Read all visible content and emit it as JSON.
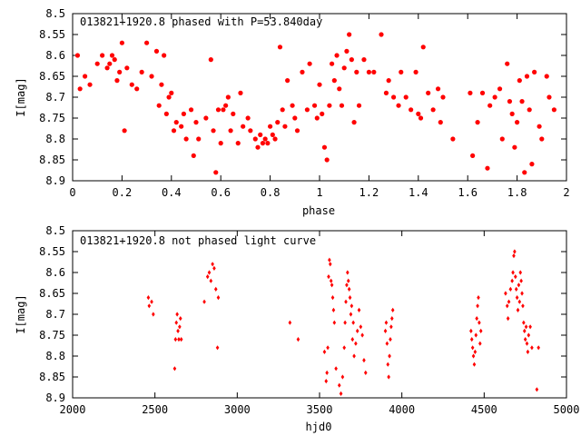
{
  "colors": {
    "points": "#ff0000",
    "frame": "#000000",
    "background": "#ffffff"
  },
  "chart_data": [
    {
      "type": "scatter",
      "title": "013821+1920.8 phased with P=53.840day",
      "xlabel": "phase",
      "ylabel": "I[mag]",
      "xlim": [
        0,
        2
      ],
      "ylim": [
        8.5,
        8.9
      ],
      "y_inverted": true,
      "x_ticks": [
        "0",
        "0.2",
        "0.4",
        "0.6",
        "0.8",
        "1",
        "1.2",
        "1.4",
        "1.6",
        "1.8",
        "2"
      ],
      "y_ticks": [
        "8.5",
        "8.55",
        "8.6",
        "8.65",
        "8.7",
        "8.75",
        "8.8",
        "8.85",
        "8.9"
      ],
      "grid": false,
      "marker": "filled-circle",
      "series": [
        {
          "points": [
            [
              0.02,
              8.6
            ],
            [
              0.03,
              8.68
            ],
            [
              0.05,
              8.65
            ],
            [
              0.07,
              8.67
            ],
            [
              0.1,
              8.62
            ],
            [
              0.12,
              8.6
            ],
            [
              0.14,
              8.63
            ],
            [
              0.15,
              8.62
            ],
            [
              0.16,
              8.6
            ],
            [
              0.17,
              8.61
            ],
            [
              0.18,
              8.66
            ],
            [
              0.19,
              8.64
            ],
            [
              0.2,
              8.57
            ],
            [
              0.21,
              8.78
            ],
            [
              0.22,
              8.63
            ],
            [
              0.24,
              8.67
            ],
            [
              0.26,
              8.68
            ],
            [
              0.28,
              8.64
            ],
            [
              0.3,
              8.57
            ],
            [
              0.32,
              8.65
            ],
            [
              0.34,
              8.59
            ],
            [
              0.35,
              8.72
            ],
            [
              0.36,
              8.67
            ],
            [
              0.37,
              8.6
            ],
            [
              0.38,
              8.74
            ],
            [
              0.39,
              8.7
            ],
            [
              0.4,
              8.69
            ],
            [
              0.41,
              8.78
            ],
            [
              0.42,
              8.76
            ],
            [
              0.44,
              8.77
            ],
            [
              0.45,
              8.74
            ],
            [
              0.46,
              8.8
            ],
            [
              0.48,
              8.73
            ],
            [
              0.49,
              8.84
            ],
            [
              0.5,
              8.76
            ],
            [
              0.51,
              8.8
            ],
            [
              0.54,
              8.75
            ],
            [
              0.56,
              8.61
            ],
            [
              0.57,
              8.78
            ],
            [
              0.58,
              8.88
            ],
            [
              0.59,
              8.73
            ],
            [
              0.6,
              8.81
            ],
            [
              0.61,
              8.73
            ],
            [
              0.62,
              8.72
            ],
            [
              0.63,
              8.7
            ],
            [
              0.64,
              8.78
            ],
            [
              0.65,
              8.74
            ],
            [
              0.67,
              8.81
            ],
            [
              0.68,
              8.69
            ],
            [
              0.69,
              8.77
            ],
            [
              0.71,
              8.75
            ],
            [
              0.72,
              8.78
            ],
            [
              0.74,
              8.8
            ],
            [
              0.75,
              8.82
            ],
            [
              0.76,
              8.79
            ],
            [
              0.77,
              8.81
            ],
            [
              0.78,
              8.8
            ],
            [
              0.79,
              8.81
            ],
            [
              0.8,
              8.77
            ],
            [
              0.81,
              8.79
            ],
            [
              0.82,
              8.8
            ],
            [
              0.83,
              8.76
            ],
            [
              0.84,
              8.58
            ],
            [
              0.85,
              8.73
            ],
            [
              0.86,
              8.77
            ],
            [
              0.87,
              8.66
            ],
            [
              0.89,
              8.72
            ],
            [
              0.9,
              8.75
            ],
            [
              0.91,
              8.78
            ],
            [
              0.93,
              8.64
            ],
            [
              0.95,
              8.73
            ],
            [
              0.96,
              8.62
            ],
            [
              0.98,
              8.72
            ],
            [
              0.99,
              8.75
            ],
            [
              1.0,
              8.67
            ],
            [
              1.01,
              8.74
            ],
            [
              1.02,
              8.82
            ],
            [
              1.03,
              8.85
            ],
            [
              1.04,
              8.72
            ],
            [
              1.05,
              8.62
            ],
            [
              1.06,
              8.66
            ],
            [
              1.07,
              8.6
            ],
            [
              1.08,
              8.68
            ],
            [
              1.09,
              8.72
            ],
            [
              1.1,
              8.63
            ],
            [
              1.11,
              8.59
            ],
            [
              1.12,
              8.55
            ],
            [
              1.13,
              8.61
            ],
            [
              1.14,
              8.76
            ],
            [
              1.15,
              8.64
            ],
            [
              1.16,
              8.72
            ],
            [
              1.18,
              8.61
            ],
            [
              1.2,
              8.64
            ],
            [
              1.22,
              8.64
            ],
            [
              1.25,
              8.55
            ],
            [
              1.27,
              8.69
            ],
            [
              1.28,
              8.66
            ],
            [
              1.3,
              8.7
            ],
            [
              1.32,
              8.72
            ],
            [
              1.33,
              8.64
            ],
            [
              1.35,
              8.7
            ],
            [
              1.37,
              8.73
            ],
            [
              1.39,
              8.64
            ],
            [
              1.4,
              8.74
            ],
            [
              1.41,
              8.75
            ],
            [
              1.42,
              8.58
            ],
            [
              1.44,
              8.69
            ],
            [
              1.46,
              8.73
            ],
            [
              1.48,
              8.68
            ],
            [
              1.49,
              8.76
            ],
            [
              1.5,
              8.7
            ],
            [
              1.54,
              8.8
            ],
            [
              1.61,
              8.69
            ],
            [
              1.62,
              8.84
            ],
            [
              1.64,
              8.76
            ],
            [
              1.66,
              8.69
            ],
            [
              1.68,
              8.87
            ],
            [
              1.69,
              8.72
            ],
            [
              1.71,
              8.7
            ],
            [
              1.73,
              8.68
            ],
            [
              1.74,
              8.8
            ],
            [
              1.76,
              8.62
            ],
            [
              1.77,
              8.71
            ],
            [
              1.78,
              8.74
            ],
            [
              1.79,
              8.82
            ],
            [
              1.8,
              8.76
            ],
            [
              1.81,
              8.66
            ],
            [
              1.82,
              8.71
            ],
            [
              1.83,
              8.88
            ],
            [
              1.84,
              8.65
            ],
            [
              1.85,
              8.73
            ],
            [
              1.86,
              8.86
            ],
            [
              1.87,
              8.64
            ],
            [
              1.89,
              8.77
            ],
            [
              1.9,
              8.8
            ],
            [
              1.92,
              8.65
            ],
            [
              1.93,
              8.7
            ],
            [
              1.95,
              8.73
            ]
          ]
        }
      ]
    },
    {
      "type": "scatter",
      "title": "013821+1920.8 not phased light curve",
      "xlabel": "hjd0",
      "ylabel": "I[mag]",
      "xlim": [
        2000,
        5000
      ],
      "ylim": [
        8.5,
        8.9
      ],
      "y_inverted": true,
      "x_ticks": [
        "2000",
        "2500",
        "3000",
        "3500",
        "4000",
        "4500",
        "5000"
      ],
      "y_ticks": [
        "8.5",
        "8.55",
        "8.6",
        "8.65",
        "8.7",
        "8.75",
        "8.8",
        "8.85",
        "8.9"
      ],
      "grid": false,
      "marker": "small-diamond",
      "series": [
        {
          "points": [
            [
              2460,
              8.66
            ],
            [
              2465,
              8.68
            ],
            [
              2480,
              8.67
            ],
            [
              2490,
              8.7
            ],
            [
              2620,
              8.83
            ],
            [
              2625,
              8.76
            ],
            [
              2630,
              8.72
            ],
            [
              2635,
              8.7
            ],
            [
              2640,
              8.74
            ],
            [
              2645,
              8.76
            ],
            [
              2650,
              8.73
            ],
            [
              2655,
              8.71
            ],
            [
              2660,
              8.76
            ],
            [
              2800,
              8.67
            ],
            [
              2820,
              8.61
            ],
            [
              2830,
              8.6
            ],
            [
              2840,
              8.62
            ],
            [
              2850,
              8.58
            ],
            [
              2860,
              8.59
            ],
            [
              2870,
              8.64
            ],
            [
              2880,
              8.78
            ],
            [
              2885,
              8.66
            ],
            [
              3320,
              8.72
            ],
            [
              3370,
              8.76
            ],
            [
              3530,
              8.79
            ],
            [
              3540,
              8.86
            ],
            [
              3545,
              8.84
            ],
            [
              3550,
              8.78
            ],
            [
              3555,
              8.61
            ],
            [
              3560,
              8.57
            ],
            [
              3565,
              8.58
            ],
            [
              3570,
              8.62
            ],
            [
              3575,
              8.63
            ],
            [
              3580,
              8.66
            ],
            [
              3585,
              8.69
            ],
            [
              3590,
              8.72
            ],
            [
              3600,
              8.83
            ],
            [
              3620,
              8.87
            ],
            [
              3630,
              8.89
            ],
            [
              3640,
              8.85
            ],
            [
              3650,
              8.78
            ],
            [
              3655,
              8.72
            ],
            [
              3660,
              8.67
            ],
            [
              3665,
              8.63
            ],
            [
              3670,
              8.6
            ],
            [
              3675,
              8.62
            ],
            [
              3680,
              8.64
            ],
            [
              3685,
              8.66
            ],
            [
              3690,
              8.7
            ],
            [
              3695,
              8.68
            ],
            [
              3700,
              8.76
            ],
            [
              3705,
              8.72
            ],
            [
              3710,
              8.8
            ],
            [
              3720,
              8.77
            ],
            [
              3730,
              8.74
            ],
            [
              3740,
              8.69
            ],
            [
              3750,
              8.73
            ],
            [
              3760,
              8.75
            ],
            [
              3770,
              8.81
            ],
            [
              3780,
              8.84
            ],
            [
              3900,
              8.74
            ],
            [
              3905,
              8.72
            ],
            [
              3910,
              8.77
            ],
            [
              3915,
              8.82
            ],
            [
              3920,
              8.85
            ],
            [
              3925,
              8.8
            ],
            [
              3930,
              8.76
            ],
            [
              3935,
              8.73
            ],
            [
              3940,
              8.71
            ],
            [
              3945,
              8.69
            ],
            [
              4420,
              8.74
            ],
            [
              4425,
              8.76
            ],
            [
              4430,
              8.78
            ],
            [
              4435,
              8.8
            ],
            [
              4440,
              8.82
            ],
            [
              4445,
              8.79
            ],
            [
              4450,
              8.75
            ],
            [
              4455,
              8.71
            ],
            [
              4460,
              8.68
            ],
            [
              4465,
              8.66
            ],
            [
              4470,
              8.72
            ],
            [
              4475,
              8.77
            ],
            [
              4480,
              8.74
            ],
            [
              4630,
              8.65
            ],
            [
              4640,
              8.68
            ],
            [
              4645,
              8.71
            ],
            [
              4650,
              8.67
            ],
            [
              4660,
              8.64
            ],
            [
              4670,
              8.62
            ],
            [
              4675,
              8.6
            ],
            [
              4680,
              8.56
            ],
            [
              4685,
              8.55
            ],
            [
              4690,
              8.61
            ],
            [
              4695,
              8.64
            ],
            [
              4700,
              8.66
            ],
            [
              4705,
              8.69
            ],
            [
              4710,
              8.63
            ],
            [
              4715,
              8.67
            ],
            [
              4720,
              8.6
            ],
            [
              4725,
              8.62
            ],
            [
              4730,
              8.65
            ],
            [
              4735,
              8.68
            ],
            [
              4740,
              8.72
            ],
            [
              4745,
              8.74
            ],
            [
              4750,
              8.76
            ],
            [
              4755,
              8.73
            ],
            [
              4760,
              8.77
            ],
            [
              4765,
              8.79
            ],
            [
              4770,
              8.75
            ],
            [
              4780,
              8.73
            ],
            [
              4790,
              8.78
            ],
            [
              4820,
              8.88
            ],
            [
              4830,
              8.78
            ]
          ]
        }
      ]
    }
  ]
}
